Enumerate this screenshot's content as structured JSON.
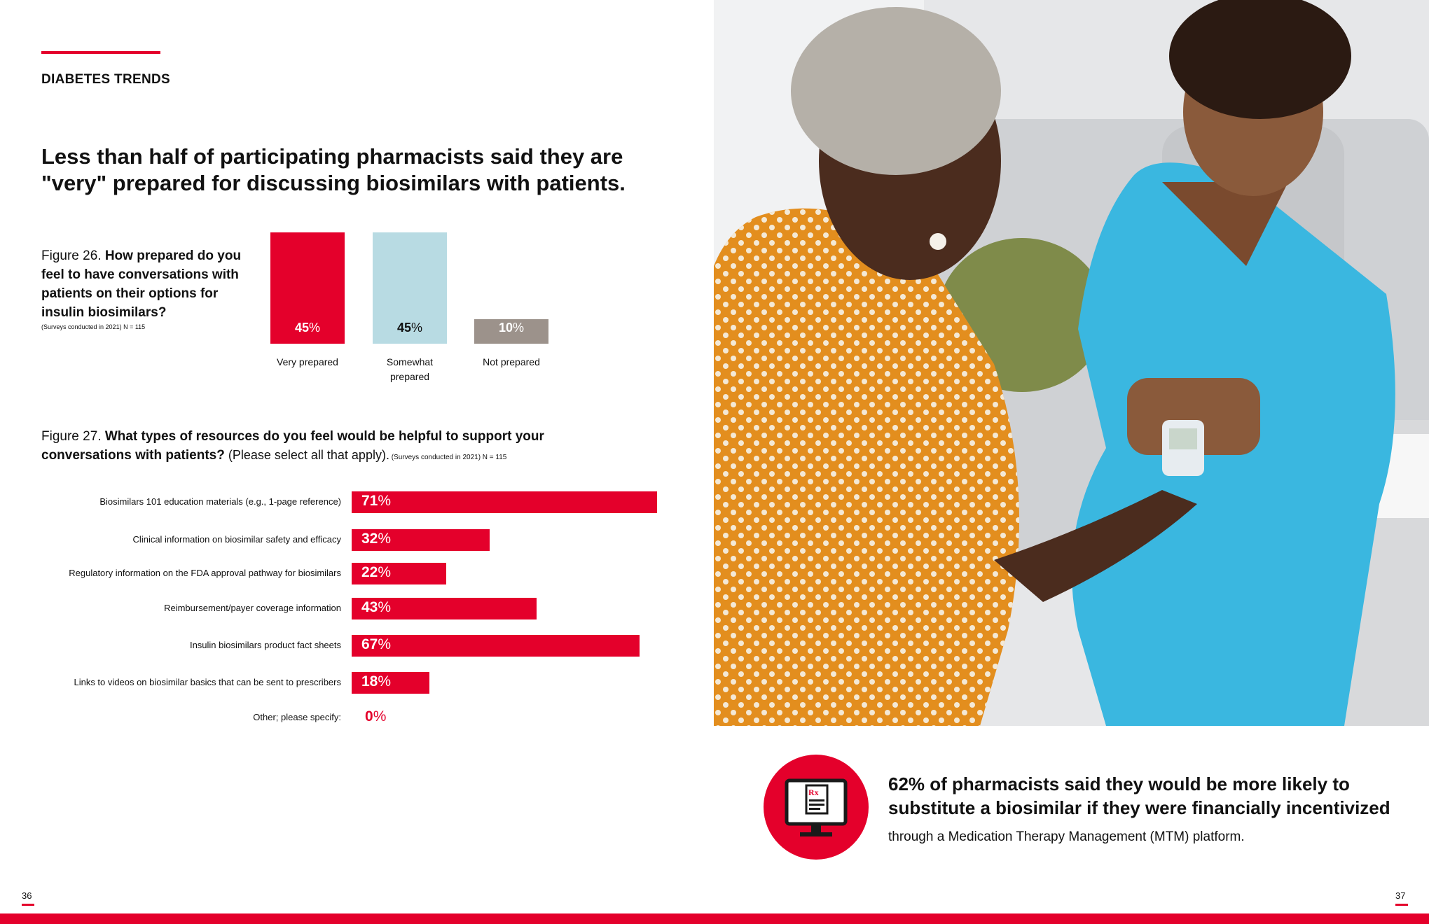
{
  "section_label": "DIABETES TRENDS",
  "headline": "Less than half of participating pharmacists said they are \"very\" prepared for discussing biosimilars with patients.",
  "figure26": {
    "prefix": "Figure 26. ",
    "question": "How prepared do you feel to have conversations with patients on their options for insulin biosimilars?",
    "note": "(Surveys conducted in 2021) N = 115",
    "bars": [
      {
        "label": "Very prepared",
        "value": 45,
        "value_text": "45",
        "color": "#e4002b",
        "text_color": "#ffffff"
      },
      {
        "label": "Somewhat prepared",
        "value": 45,
        "value_text": "45",
        "color": "#b8dbe3",
        "text_color": "#111111"
      },
      {
        "label": "Not prepared",
        "value": 10,
        "value_text": "10",
        "color": "#9c928b",
        "text_color": "#ffffff"
      }
    ],
    "unit": "%"
  },
  "figure27": {
    "prefix": "Figure 27. ",
    "question": "What types of resources do you feel would be helpful to support your conversations with patients?",
    "instruction": " (Please select all that apply).",
    "note": " (Surveys conducted in 2021) N = 115",
    "unit": "%",
    "bars": [
      {
        "label": "Biosimilars 101 education materials (e.g., 1-page reference)",
        "value": 71,
        "value_text": "71"
      },
      {
        "label": "Clinical information on biosimilar safety and efficacy",
        "value": 32,
        "value_text": "32"
      },
      {
        "label": "Regulatory information on the FDA approval pathway for biosimilars",
        "value": 22,
        "value_text": "22"
      },
      {
        "label": "Reimbursement/payer coverage information",
        "value": 43,
        "value_text": "43"
      },
      {
        "label": "Insulin biosimilars product fact sheets",
        "value": 67,
        "value_text": "67"
      },
      {
        "label": "Links to videos on biosimilar basics that can be sent to prescribers",
        "value": 18,
        "value_text": "18"
      },
      {
        "label": "Other; please specify:",
        "value": 0,
        "value_text": "0"
      }
    ]
  },
  "callout": {
    "bold": "62% of pharmacists said they would be more likely to substitute a biosimilar if they were financially incentivized",
    "normal": " through a Medication Therapy Management (MTM) platform.",
    "icon": "computer-prescription-icon"
  },
  "photo": {
    "icon": "pharmacist-glucose-test-photo"
  },
  "page_left": "36",
  "page_right": "37",
  "colors": {
    "accent": "#e4002b",
    "light_blue": "#b8dbe3",
    "gray": "#9c928b"
  }
}
